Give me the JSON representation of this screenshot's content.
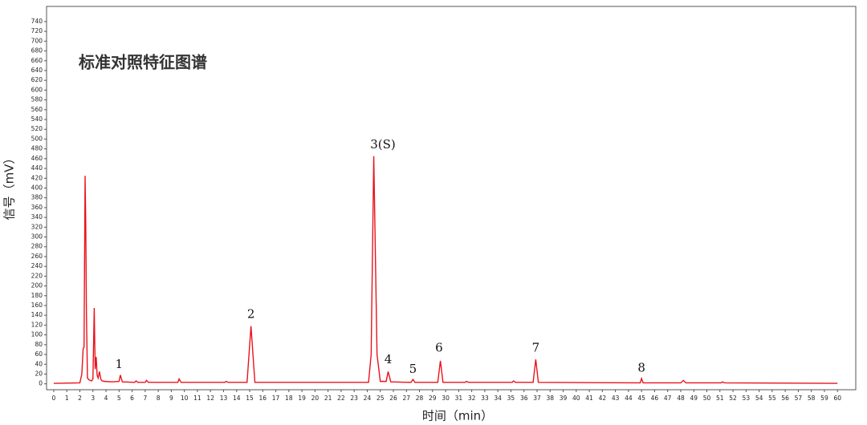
{
  "chart_data": {
    "type": "line",
    "title": "标准对照特征图谱",
    "x_label": "时间（min）",
    "y_label": "信号（mV）",
    "xlim": [
      -0.55,
      61.4
    ],
    "ylim": [
      -12,
      771
    ],
    "xticks": [
      0,
      1,
      2,
      3,
      4,
      5,
      6,
      7,
      8,
      9,
      10,
      11,
      12,
      13,
      14,
      15,
      16,
      17,
      18,
      19,
      20,
      21,
      22,
      23,
      24,
      25,
      26,
      27,
      28,
      29,
      30,
      31,
      32,
      33,
      34,
      35,
      36,
      37,
      38,
      39,
      40,
      41,
      42,
      43,
      44,
      45,
      46,
      47,
      48,
      49,
      50,
      51,
      52,
      53,
      54,
      55,
      56,
      57,
      58,
      59,
      60
    ],
    "yticks": [
      0,
      20,
      40,
      60,
      80,
      100,
      120,
      140,
      160,
      180,
      200,
      220,
      240,
      260,
      280,
      300,
      320,
      340,
      360,
      380,
      400,
      420,
      440,
      460,
      480,
      500,
      520,
      540,
      560,
      580,
      600,
      620,
      640,
      660,
      680,
      700,
      720,
      740
    ],
    "series": [
      {
        "color": "#e8141b",
        "x": [
          0,
          2.0,
          2.15,
          2.25,
          2.32,
          2.4,
          2.45,
          2.5,
          2.58,
          2.7,
          2.9,
          3.0,
          3.1,
          3.17,
          3.25,
          3.32,
          3.4,
          3.5,
          3.6,
          3.7,
          3.9,
          4.5,
          5.0,
          5.1,
          5.25,
          6.2,
          6.3,
          6.45,
          7.0,
          7.1,
          7.25,
          9.5,
          9.6,
          9.75,
          13.1,
          13.2,
          13.35,
          14.8,
          15.1,
          15.4,
          24.1,
          24.3,
          24.5,
          24.75,
          25.0,
          25.45,
          25.6,
          25.8,
          27.35,
          27.5,
          27.65,
          29.4,
          29.6,
          29.8,
          31.5,
          31.6,
          31.75,
          35.1,
          35.2,
          35.35,
          36.7,
          36.9,
          37.1,
          44.9,
          45.0,
          45.12,
          48.0,
          48.2,
          48.4,
          51.1,
          51.2,
          51.35,
          60
        ],
        "values": [
          1,
          2,
          20,
          72,
          75,
          425,
          330,
          150,
          12,
          8,
          6,
          10,
          155,
          30,
          55,
          18,
          12,
          25,
          10,
          6,
          5,
          4,
          5,
          18,
          4,
          3,
          6,
          3,
          3,
          7,
          3,
          3,
          10,
          3,
          3,
          5,
          3,
          3,
          118,
          3,
          3,
          60,
          465,
          60,
          5,
          5,
          25,
          4,
          3,
          9,
          3,
          3,
          47,
          3,
          3,
          5,
          3,
          3,
          6,
          3,
          3,
          50,
          3,
          2,
          11,
          2,
          2,
          7,
          2,
          2,
          4,
          2,
          1
        ]
      }
    ],
    "annotations": [
      {
        "text": "1",
        "x": 5.0,
        "y": 39
      },
      {
        "text": "2",
        "x": 15.1,
        "y": 141
      },
      {
        "text": "3(S)",
        "x": 25.2,
        "y": 488
      },
      {
        "text": "4",
        "x": 25.6,
        "y": 49
      },
      {
        "text": "5",
        "x": 27.5,
        "y": 29
      },
      {
        "text": "6",
        "x": 29.5,
        "y": 72
      },
      {
        "text": "7",
        "x": 36.9,
        "y": 72
      },
      {
        "text": "8",
        "x": 45.0,
        "y": 31
      }
    ]
  }
}
